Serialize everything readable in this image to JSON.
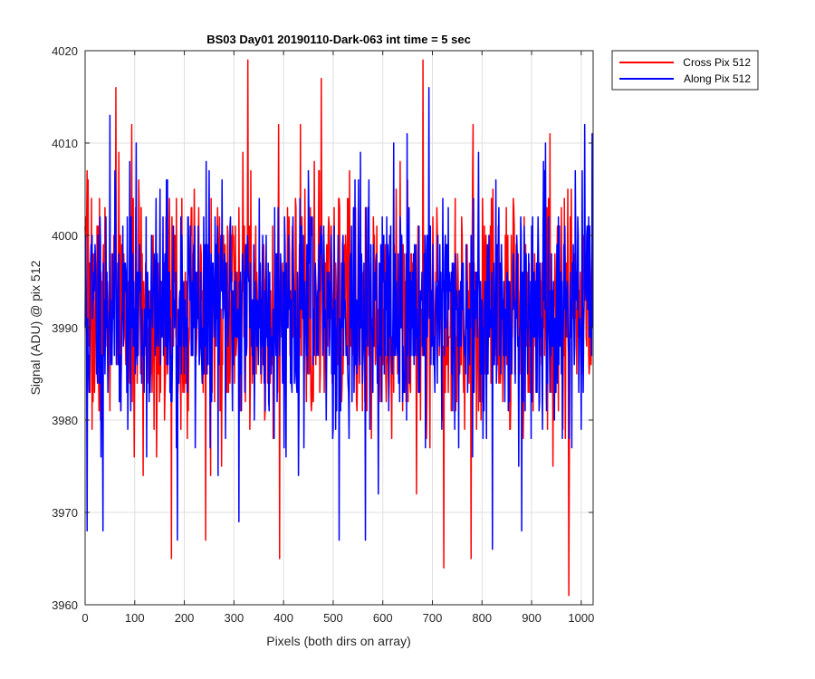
{
  "chart_data": {
    "type": "line",
    "title": "BS03 Day01 20190110-Dark-063 int time = 5 sec",
    "xlabel": "Pixels (both dirs on array)",
    "ylabel": "Signal (ADU) @ pix 512",
    "xlim": [
      0,
      1024
    ],
    "ylim": [
      3960,
      4020
    ],
    "xticks": [
      0,
      100,
      200,
      300,
      400,
      500,
      600,
      700,
      800,
      900,
      1000
    ],
    "yticks": [
      3960,
      3970,
      3980,
      3990,
      4000,
      4010,
      4020
    ],
    "grid": true,
    "legend_position": "outside-top-right",
    "series": [
      {
        "name": "Cross Pix 512",
        "color": "#ff0000",
        "noise_model": {
          "points": 1024,
          "mean": 3992,
          "min": 3961,
          "max": 4019,
          "seed": 7
        },
        "key_points": [
          [
            6,
            4006
          ],
          [
            62,
            4016
          ],
          [
            174,
            3965
          ],
          [
            243,
            3967
          ],
          [
            328,
            4019
          ],
          [
            392,
            3965
          ],
          [
            476,
            4017
          ],
          [
            681,
            4019
          ],
          [
            723,
            3964
          ],
          [
            778,
            3965
          ],
          [
            937,
            4011
          ],
          [
            975,
            3961
          ],
          [
            1020,
            3986
          ]
        ]
      },
      {
        "name": "Along Pix 512",
        "color": "#0000ff",
        "noise_model": {
          "points": 1024,
          "mean": 3992,
          "min": 3966,
          "max": 4018,
          "seed": 11
        },
        "key_points": [
          [
            0,
            3990
          ],
          [
            4,
            3968
          ],
          [
            36,
            3968
          ],
          [
            50,
            4013
          ],
          [
            186,
            3967
          ],
          [
            310,
            3969
          ],
          [
            512,
            3967
          ],
          [
            565,
            3967
          ],
          [
            693,
            4016
          ],
          [
            821,
            3966
          ],
          [
            880,
            3968
          ],
          [
            1022,
            4011
          ]
        ]
      }
    ]
  }
}
